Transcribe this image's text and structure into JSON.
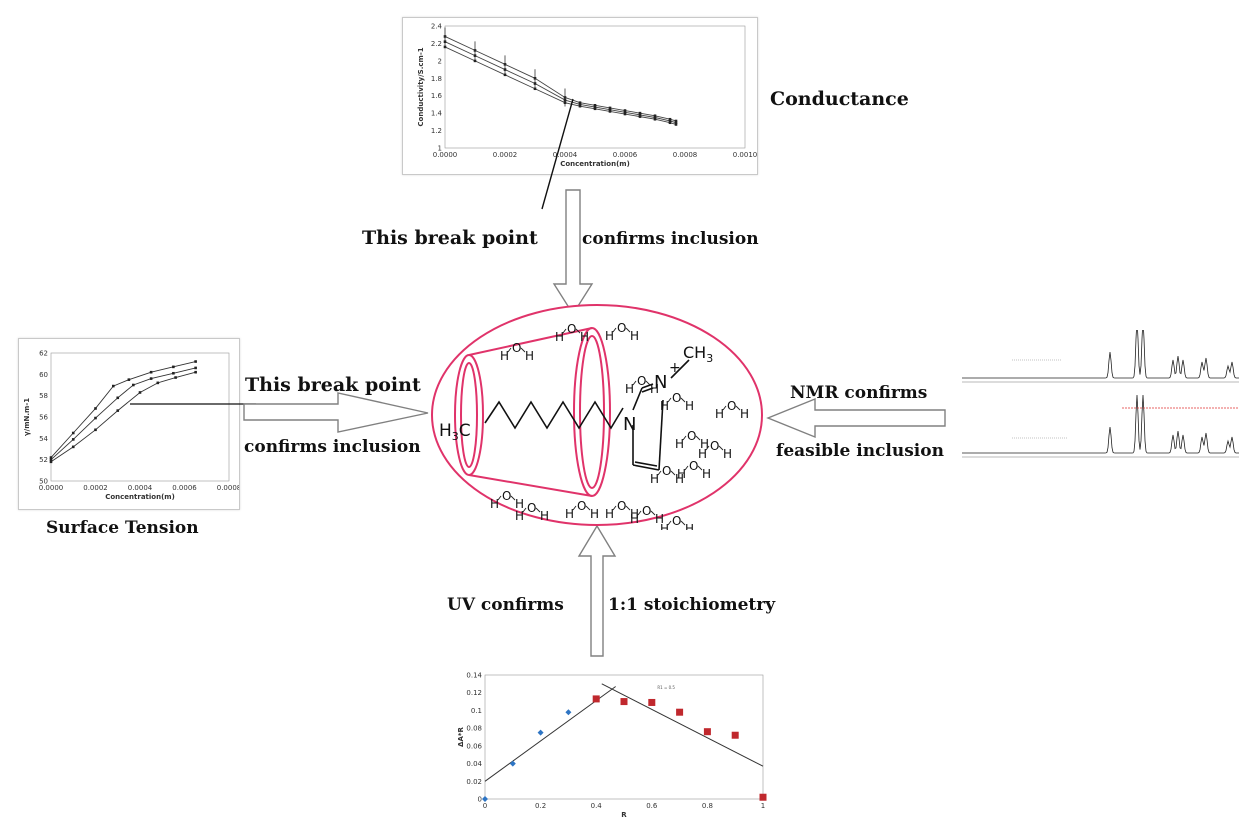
{
  "labels": {
    "conductance": "Conductance",
    "break_top": "This break point",
    "confirms_top": "confirms inclusion",
    "break_left": "This break point",
    "confirms_left": "confirms inclusion",
    "surface_tension": "Surface Tension",
    "nmr_confirms": "NMR confirms",
    "feasible_inclusion": "feasible inclusion",
    "uv_confirms": "UV confirms",
    "stoichiometry": "1:1 stoichiometry"
  },
  "molecule": {
    "methyl_left": "H3C",
    "methyl_right": "CH3",
    "nitrogen": "N",
    "charge": "+",
    "water": "H  O  H"
  },
  "colors": {
    "ellipse": "#e0336a",
    "arrow": "#808080",
    "uv_blue": "#2e75c4",
    "uv_red": "#c0282d",
    "nmr_red": "#e03030"
  },
  "chart_data": [
    {
      "id": "conductance",
      "type": "scatter",
      "xlabel": "Concentration(m)",
      "ylabel": "Conductivity/S.cm-1",
      "xlim": [
        0,
        0.001
      ],
      "ylim": [
        1,
        2.4
      ],
      "x_ticks": [
        "0.0000",
        "0.0002",
        "0.0004",
        "0.0006",
        "0.0008",
        "0.0010"
      ],
      "y_ticks": [
        "1",
        "1.2",
        "1.4",
        "1.6",
        "1.8",
        "2",
        "2.2",
        "2.4"
      ],
      "series": [
        {
          "x": [
            0,
            0.0001,
            0.0002,
            0.0003,
            0.0004,
            0.00045,
            0.0005,
            0.00055,
            0.0006,
            0.00065,
            0.0007,
            0.00075,
            0.00077
          ],
          "y": [
            2.28,
            2.12,
            1.96,
            1.8,
            1.58,
            1.52,
            1.49,
            1.46,
            1.43,
            1.4,
            1.37,
            1.33,
            1.31
          ]
        },
        {
          "x": [
            0,
            0.0001,
            0.0002,
            0.0003,
            0.0004,
            0.00045,
            0.0005,
            0.00055,
            0.0006,
            0.00065,
            0.0007,
            0.00075,
            0.00077
          ],
          "y": [
            2.22,
            2.06,
            1.9,
            1.74,
            1.55,
            1.5,
            1.47,
            1.44,
            1.41,
            1.38,
            1.35,
            1.31,
            1.29
          ]
        },
        {
          "x": [
            0,
            0.0001,
            0.0002,
            0.0003,
            0.0004,
            0.00045,
            0.0005,
            0.00055,
            0.0006,
            0.00065,
            0.0007,
            0.00075,
            0.00077
          ],
          "y": [
            2.16,
            2.0,
            1.84,
            1.68,
            1.52,
            1.48,
            1.45,
            1.42,
            1.39,
            1.36,
            1.33,
            1.29,
            1.27
          ]
        }
      ]
    },
    {
      "id": "surface_tension",
      "type": "line",
      "xlabel": "Concentration(m)",
      "ylabel": "γ/mN.m-1",
      "xlim": [
        0,
        0.0008
      ],
      "ylim": [
        50,
        62
      ],
      "x_ticks": [
        "0.0000",
        "0.0002",
        "0.0004",
        "0.0006",
        "0.0008"
      ],
      "y_ticks": [
        "50",
        "52",
        "54",
        "56",
        "58",
        "60",
        "62"
      ],
      "series": [
        {
          "x": [
            0,
            0.0001,
            0.0002,
            0.00028,
            0.00035,
            0.00045,
            0.00055,
            0.00065
          ],
          "y": [
            52.2,
            54.5,
            56.8,
            58.9,
            59.5,
            60.2,
            60.7,
            61.2
          ]
        },
        {
          "x": [
            0,
            0.0001,
            0.0002,
            0.0003,
            0.00037,
            0.00045,
            0.00055,
            0.00065
          ],
          "y": [
            52.0,
            53.9,
            55.9,
            57.8,
            59.0,
            59.6,
            60.1,
            60.6
          ]
        },
        {
          "x": [
            0,
            0.0001,
            0.0002,
            0.0003,
            0.0004,
            0.00048,
            0.00056,
            0.00065
          ],
          "y": [
            51.8,
            53.2,
            54.8,
            56.6,
            58.3,
            59.2,
            59.7,
            60.2
          ]
        }
      ]
    },
    {
      "id": "uv_job_plot",
      "type": "scatter",
      "xlabel": "R",
      "ylabel": "ΔA*R",
      "xlim": [
        0,
        1
      ],
      "ylim": [
        0,
        0.14
      ],
      "x_ticks": [
        "0",
        "0.2",
        "0.4",
        "0.6",
        "0.8",
        "1"
      ],
      "y_ticks": [
        "0",
        "0.02",
        "0.04",
        "0.06",
        "0.08",
        "0.1",
        "0.12",
        "0.14"
      ],
      "annotation": "R1 = 0.5",
      "series": [
        {
          "x": [
            0,
            0.1,
            0.2,
            0.3
          ],
          "y": [
            0.0,
            0.04,
            0.075,
            0.098
          ]
        },
        {
          "x": [
            0.4,
            0.5,
            0.6,
            0.7,
            0.8,
            0.9,
            1.0
          ],
          "y": [
            0.113,
            0.11,
            0.109,
            0.098,
            0.076,
            0.072,
            0.002
          ]
        }
      ]
    }
  ]
}
